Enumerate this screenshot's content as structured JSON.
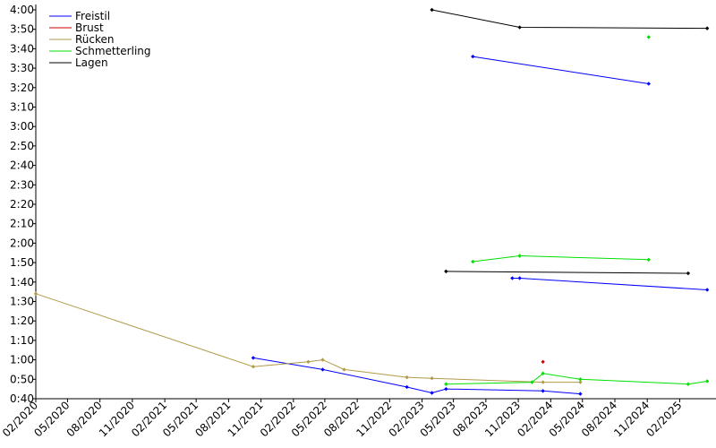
{
  "chart_data": {
    "type": "line",
    "y_axis": {
      "min": 40,
      "max": 240,
      "ticks": [
        {
          "v": 40,
          "label": "0:40"
        },
        {
          "v": 50,
          "label": "0:50"
        },
        {
          "v": 60,
          "label": "1:00"
        },
        {
          "v": 70,
          "label": "1:10"
        },
        {
          "v": 80,
          "label": "1:20"
        },
        {
          "v": 90,
          "label": "1:30"
        },
        {
          "v": 100,
          "label": "1:40"
        },
        {
          "v": 110,
          "label": "1:50"
        },
        {
          "v": 120,
          "label": "2:00"
        },
        {
          "v": 130,
          "label": "2:10"
        },
        {
          "v": 140,
          "label": "2:20"
        },
        {
          "v": 150,
          "label": "2:30"
        },
        {
          "v": 160,
          "label": "2:40"
        },
        {
          "v": 170,
          "label": "2:50"
        },
        {
          "v": 180,
          "label": "3:00"
        },
        {
          "v": 190,
          "label": "3:10"
        },
        {
          "v": 200,
          "label": "3:20"
        },
        {
          "v": 210,
          "label": "3:30"
        },
        {
          "v": 220,
          "label": "3:40"
        },
        {
          "v": 230,
          "label": "3:50"
        },
        {
          "v": 240,
          "label": "4:00"
        }
      ]
    },
    "x_axis": {
      "min": "2020-02-01",
      "max": "2025-05-15",
      "ticks": [
        {
          "date": "2020-02-01",
          "label": "02/2020"
        },
        {
          "date": "2020-05-01",
          "label": "05/2020"
        },
        {
          "date": "2020-08-01",
          "label": "08/2020"
        },
        {
          "date": "2020-11-01",
          "label": "11/2020"
        },
        {
          "date": "2021-02-01",
          "label": "02/2021"
        },
        {
          "date": "2021-05-01",
          "label": "05/2021"
        },
        {
          "date": "2021-08-01",
          "label": "08/2021"
        },
        {
          "date": "2021-11-01",
          "label": "11/2021"
        },
        {
          "date": "2022-02-01",
          "label": "02/2022"
        },
        {
          "date": "2022-05-01",
          "label": "05/2022"
        },
        {
          "date": "2022-08-01",
          "label": "08/2022"
        },
        {
          "date": "2022-11-01",
          "label": "11/2022"
        },
        {
          "date": "2023-02-01",
          "label": "02/2023"
        },
        {
          "date": "2023-05-01",
          "label": "05/2023"
        },
        {
          "date": "2023-08-01",
          "label": "08/2023"
        },
        {
          "date": "2023-11-01",
          "label": "11/2023"
        },
        {
          "date": "2024-02-01",
          "label": "02/2024"
        },
        {
          "date": "2024-05-01",
          "label": "05/2024"
        },
        {
          "date": "2024-08-01",
          "label": "08/2024"
        },
        {
          "date": "2024-11-01",
          "label": "11/2024"
        },
        {
          "date": "2025-02-01",
          "label": "02/2025"
        }
      ]
    },
    "grid": false,
    "legend_position": "top-left",
    "series": [
      {
        "name": "Freistil",
        "color": "#0000ff",
        "lines": [
          [
            [
              "2021-10-10",
              61
            ],
            [
              "2022-04-25",
              55
            ],
            [
              "2022-12-20",
              46
            ],
            [
              "2023-03-01",
              43
            ],
            [
              "2023-04-10",
              45
            ],
            [
              "2024-01-10",
              44
            ],
            [
              "2024-04-25",
              42.5
            ]
          ],
          [
            [
              "2023-10-15",
              102
            ],
            [
              "2023-11-05",
              102
            ],
            [
              "2025-04-20",
              96
            ]
          ],
          [
            [
              "2023-06-25",
              216
            ],
            [
              "2024-11-05",
              202
            ]
          ]
        ]
      },
      {
        "name": "Brust",
        "color": "#cc0000",
        "lines": [
          [
            [
              "2024-01-10",
              59
            ]
          ]
        ]
      },
      {
        "name": "Rücken",
        "color": "#b29a48",
        "lines": [
          [
            [
              "2020-02-01",
              94
            ],
            [
              "2021-10-10",
              56.5
            ],
            [
              "2022-03-15",
              59
            ],
            [
              "2022-04-25",
              60
            ],
            [
              "2022-06-25",
              55
            ],
            [
              "2022-12-20",
              51
            ],
            [
              "2023-03-01",
              50.5
            ],
            [
              "2024-01-10",
              48.5
            ],
            [
              "2024-04-25",
              48.5
            ]
          ]
        ]
      },
      {
        "name": "Schmetterling",
        "color": "#00e000",
        "lines": [
          [
            [
              "2023-04-10",
              47.5
            ],
            [
              "2023-12-10",
              48.5
            ],
            [
              "2024-01-10",
              53
            ],
            [
              "2024-04-25",
              50
            ],
            [
              "2025-02-25",
              47.5
            ],
            [
              "2025-04-20",
              49
            ]
          ],
          [
            [
              "2023-06-25",
              110.5
            ],
            [
              "2023-11-05",
              113.5
            ],
            [
              "2024-11-05",
              111.5
            ]
          ],
          [
            [
              "2024-11-05",
              226
            ]
          ]
        ]
      },
      {
        "name": "Lagen",
        "color": "#000000",
        "lines": [
          [
            [
              "2023-04-10",
              105.5
            ],
            [
              "2025-02-25",
              104.5
            ]
          ],
          [
            [
              "2023-03-01",
              240
            ],
            [
              "2023-11-05",
              231
            ],
            [
              "2025-04-20",
              230.5
            ]
          ]
        ]
      }
    ]
  }
}
